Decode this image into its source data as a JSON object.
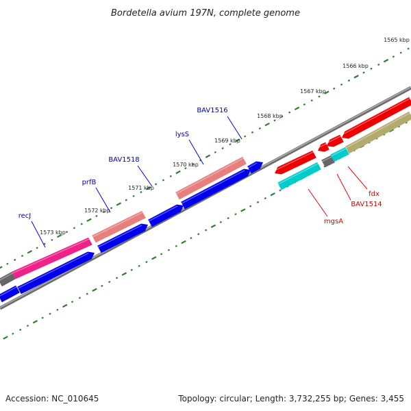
{
  "title": "Bordetella avium 197N, complete genome",
  "footer": {
    "accession": "Accession: NC_010645",
    "summary": "Topology: circular; Length: 3,732,255 bp; Genes: 3,455"
  },
  "ruler": {
    "unit": "kbp",
    "ticks": [
      {
        "value": 1573,
        "label": "1573 kbp"
      },
      {
        "value": 1572,
        "label": "1572 kbp"
      },
      {
        "value": 1571,
        "label": "1571 kbp"
      },
      {
        "value": 1570,
        "label": "1570 kbp"
      },
      {
        "value": 1569,
        "label": "1569 kbp"
      },
      {
        "value": 1568,
        "label": "1568 kbp"
      },
      {
        "value": 1567,
        "label": "1567 kbp"
      },
      {
        "value": 1566,
        "label": "1566 kbp"
      },
      {
        "value": 1565,
        "label": "1565 kbp"
      }
    ]
  },
  "colors": {
    "cds_forward": "#0000ee",
    "cds_reverse": "#ee0000",
    "label_forward": "#0000aa",
    "label_reverse": "#cc0000",
    "backbone": "#888888",
    "tick": "#2e7d2e",
    "pink_strong": "#ee2288",
    "salmon": "#e87f7f",
    "cyan": "#00cccc",
    "olive": "#b3aa6e",
    "gray_feature": "#666666"
  },
  "features": [
    {
      "name": "recJ",
      "strand": "forward",
      "kind": "CDS"
    },
    {
      "name": "prfB",
      "strand": "forward",
      "kind": "CDS"
    },
    {
      "name": "BAV1518",
      "strand": "forward",
      "kind": "CDS"
    },
    {
      "name": "lysS",
      "strand": "forward",
      "kind": "CDS"
    },
    {
      "name": "BAV1516",
      "strand": "forward",
      "kind": "CDS"
    },
    {
      "name": "mgsA",
      "strand": "reverse",
      "kind": "CDS"
    },
    {
      "name": "BAV1514",
      "strand": "reverse",
      "kind": "CDS"
    },
    {
      "name": "fdx",
      "strand": "reverse",
      "kind": "CDS"
    }
  ]
}
